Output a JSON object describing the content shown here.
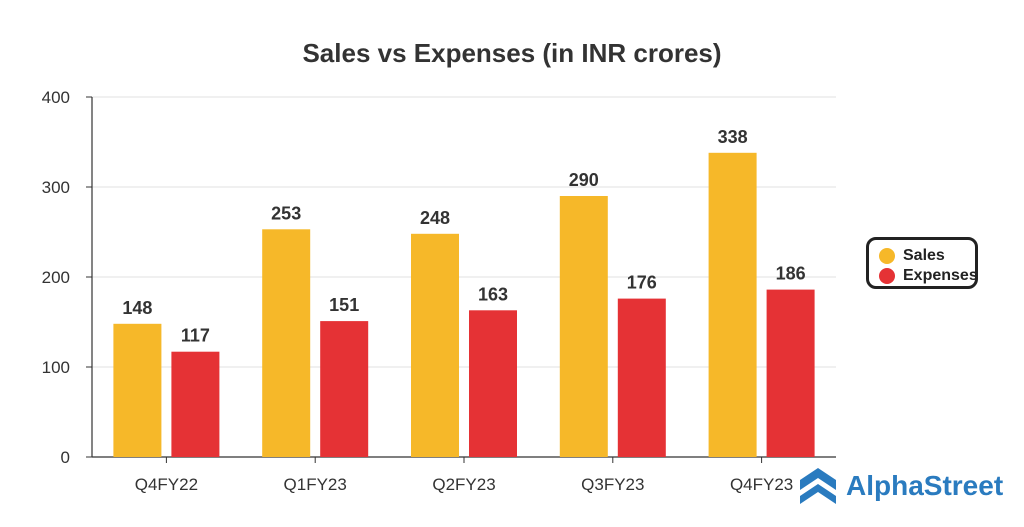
{
  "chart_data": {
    "type": "bar",
    "title": "Sales vs Expenses (in INR crores)",
    "categories": [
      "Q4FY22",
      "Q1FY23",
      "Q2FY23",
      "Q3FY23",
      "Q4FY23"
    ],
    "series": [
      {
        "name": "Sales",
        "color": "#f6b829",
        "values": [
          148,
          253,
          248,
          290,
          338
        ]
      },
      {
        "name": "Expenses",
        "color": "#e53235",
        "values": [
          117,
          151,
          163,
          176,
          186
        ]
      }
    ],
    "ylim": [
      0,
      400
    ],
    "yticks": [
      0,
      100,
      200,
      300,
      400
    ],
    "xlabel": "",
    "ylabel": "",
    "grid": true,
    "legend_position": "right"
  },
  "legend": {
    "items": [
      {
        "label": "Sales",
        "color": "#f6b829"
      },
      {
        "label": "Expenses",
        "color": "#e53235"
      }
    ]
  },
  "brand": {
    "name": "AlphaStreet",
    "color": "#2a7bbf",
    "icon": "alphastreet-logo-icon"
  }
}
